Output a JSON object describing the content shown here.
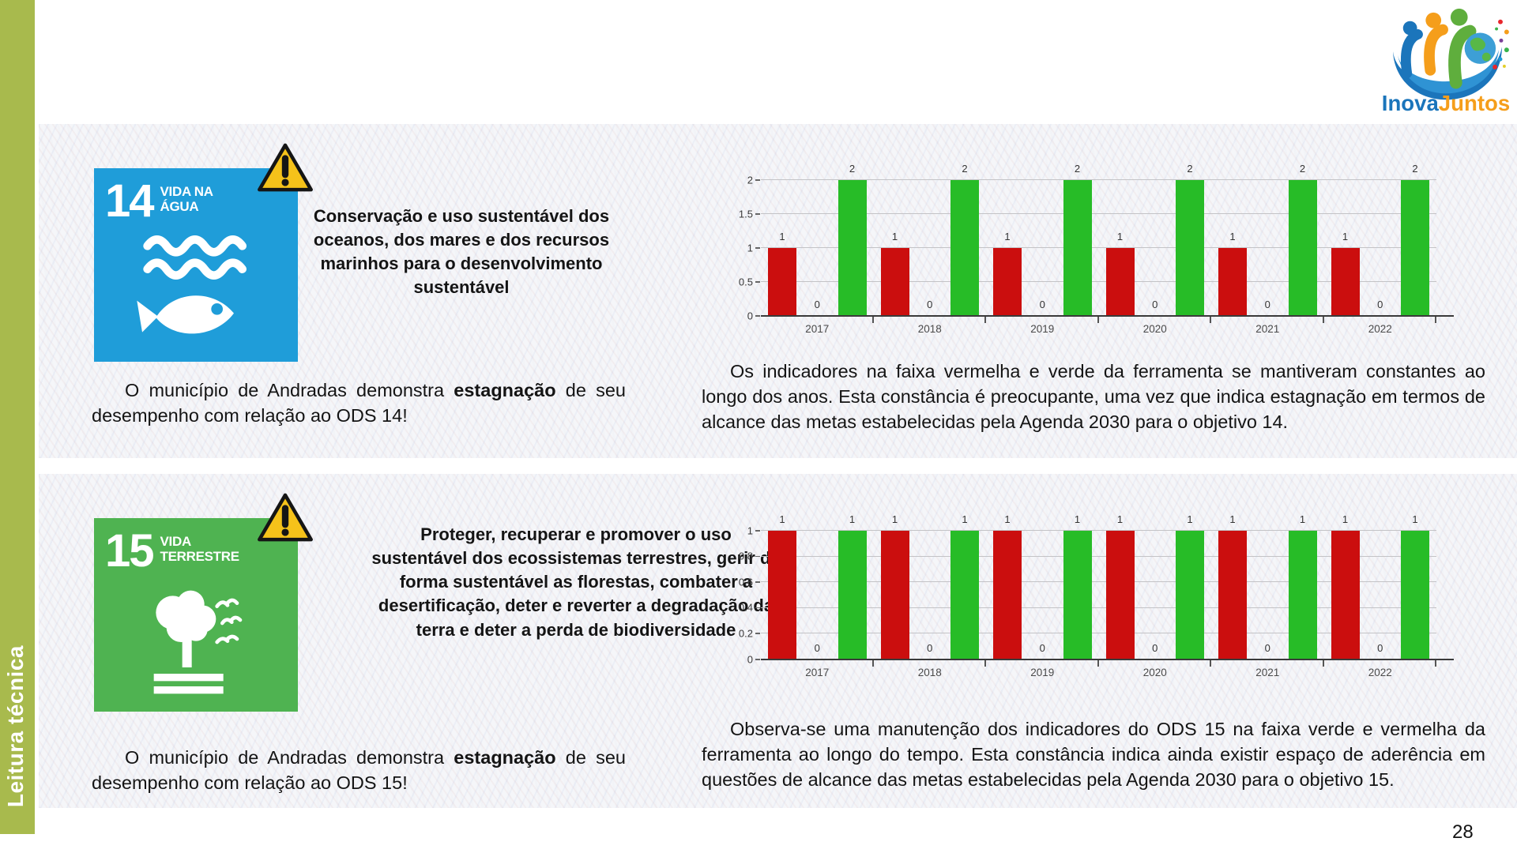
{
  "sidebar": {
    "label": "Leitura técnica",
    "color": "#a8ba4d"
  },
  "logo": {
    "inova": "Inova",
    "juntos": "Juntos",
    "inova_color": "#1b75bb",
    "juntos_color": "#f59e1b"
  },
  "page_number": "28",
  "sections": [
    {
      "sdg": {
        "number": "14",
        "line1": "VIDA NA",
        "line2": "ÁGUA",
        "color": "#1f9dd9",
        "icon": "fish-and-waves"
      },
      "warning_icon": "warning-triangle",
      "goal": "Conservação e uso sustentável dos oceanos, dos mares e dos recursos marinhos para o desenvolvimento sustentável",
      "status": {
        "before": "O município de Andradas demonstra ",
        "bold": "estagnação",
        "after": " de seu desempenho com relação ao ODS 14!"
      },
      "analysis": "Os indicadores na faixa vermelha e verde da ferramenta se mantiveram constantes ao longo dos anos. Esta constância é preocupante, uma vez que indica estagnação em termos de alcance das metas estabelecidas pela Agenda 2030 para o objetivo 14."
    },
    {
      "sdg": {
        "number": "15",
        "line1": "VIDA",
        "line2": "TERRESTRE",
        "color": "#4fb351",
        "icon": "tree-and-birds"
      },
      "warning_icon": "warning-triangle",
      "goal": "Proteger, recuperar e promover o uso sustentável dos ecossistemas terrestres, gerir de forma sustentável as florestas, combater a desertificação, deter e reverter a degradação da terra e deter a perda de biodiversidade",
      "status": {
        "before": "O município de Andradas demonstra ",
        "bold": "estagnação",
        "after": " de seu desempenho com relação ao ODS 15!"
      },
      "analysis": "Observa-se uma manutenção dos indicadores do ODS 15 na faixa verde e vermelha da ferramenta ao longo do tempo. Esta constância indica ainda existir espaço de aderência em questões de alcance das metas estabelecidas pela Agenda 2030 para o objetivo 15."
    }
  ],
  "chart_data": [
    {
      "type": "bar",
      "categories": [
        "2017",
        "2018",
        "2019",
        "2020",
        "2021",
        "2022"
      ],
      "series": [
        {
          "name": "faixa-vermelha",
          "color": "#cb0e0e",
          "values": [
            1,
            1,
            1,
            1,
            1,
            1
          ]
        },
        {
          "name": "faixa-central",
          "color": null,
          "values": [
            0,
            0,
            0,
            0,
            0,
            0
          ]
        },
        {
          "name": "faixa-verde",
          "color": "#27bc27",
          "values": [
            2,
            2,
            2,
            2,
            2,
            2
          ]
        }
      ],
      "title": "",
      "xlabel": "",
      "ylabel": "",
      "ylim": [
        0,
        2
      ],
      "yticks": [
        0,
        0.5,
        1,
        1.5,
        2
      ],
      "grid": true,
      "value_labels": true,
      "legend": false
    },
    {
      "type": "bar",
      "categories": [
        "2017",
        "2018",
        "2019",
        "2020",
        "2021",
        "2022"
      ],
      "series": [
        {
          "name": "faixa-vermelha",
          "color": "#cb0e0e",
          "values": [
            1,
            1,
            1,
            1,
            1,
            1
          ]
        },
        {
          "name": "faixa-central",
          "color": null,
          "values": [
            0,
            0,
            0,
            0,
            0,
            0
          ]
        },
        {
          "name": "faixa-verde",
          "color": "#27bc27",
          "values": [
            1,
            1,
            1,
            1,
            1,
            1
          ]
        }
      ],
      "title": "",
      "xlabel": "",
      "ylabel": "",
      "ylim": [
        0,
        1
      ],
      "yticks": [
        0,
        0.2,
        0.4,
        0.6,
        0.8,
        1
      ],
      "grid": true,
      "value_labels": true,
      "legend": false
    }
  ]
}
